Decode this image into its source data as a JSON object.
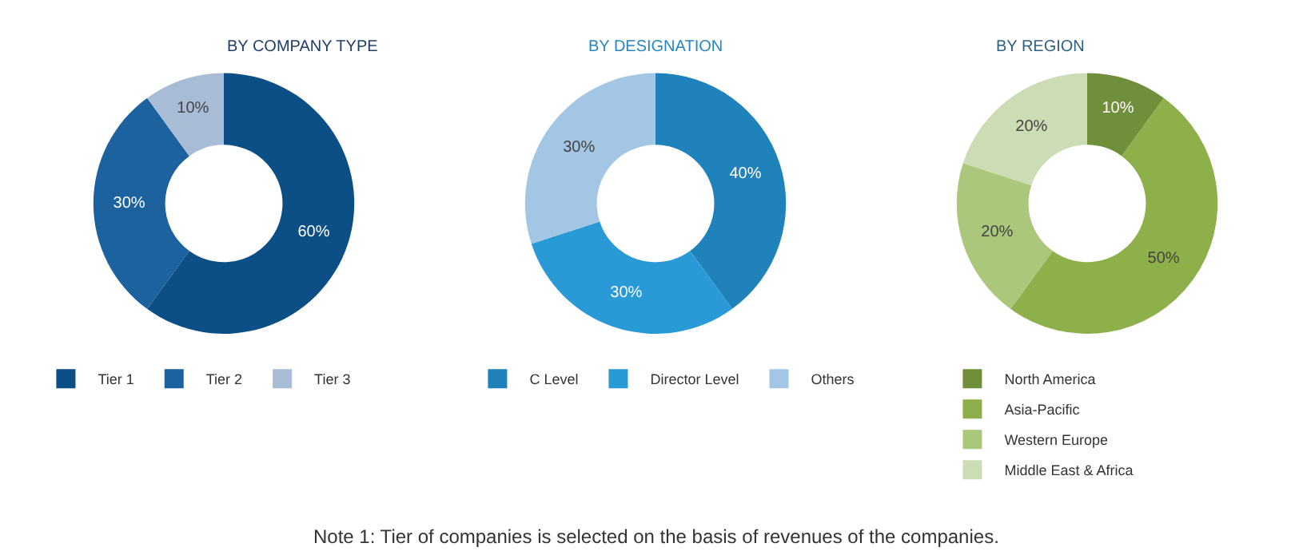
{
  "chart_data": [
    {
      "type": "donut",
      "title": "BY COMPANY TYPE",
      "categories": [
        "Tier 1",
        "Tier 2",
        "Tier 3"
      ],
      "values": [
        60,
        30,
        10
      ],
      "value_labels": [
        "60%",
        "30%",
        "10%"
      ],
      "colors": [
        "#0b4f86",
        "#1c629e",
        "#a9bcd6"
      ],
      "legend": "bottom"
    },
    {
      "type": "donut",
      "title": "BY DESIGNATION",
      "categories": [
        "C Level",
        "Director Level",
        "Others"
      ],
      "values": [
        40,
        30,
        30
      ],
      "value_labels": [
        "40%",
        "30%",
        "30%"
      ],
      "colors": [
        "#1f82ba",
        "#2a9ad6",
        "#a3c6e4"
      ],
      "legend": "bottom",
      "annotations": [
        "Note 1: Tier of companies is selected on the basis of revenues of the companies."
      ]
    },
    {
      "type": "donut",
      "title": "BY REGION",
      "categories": [
        "North America",
        "Asia-Pacific",
        "Western Europe",
        "Middle East & Africa"
      ],
      "values": [
        10,
        50,
        20,
        20
      ],
      "value_labels": [
        "10%",
        "50%",
        "20%",
        "20%"
      ],
      "colors": [
        "#6f8f3a",
        "#8db04a",
        "#aac77c",
        "#ccdcb4"
      ],
      "legend": "bottom"
    }
  ]
}
